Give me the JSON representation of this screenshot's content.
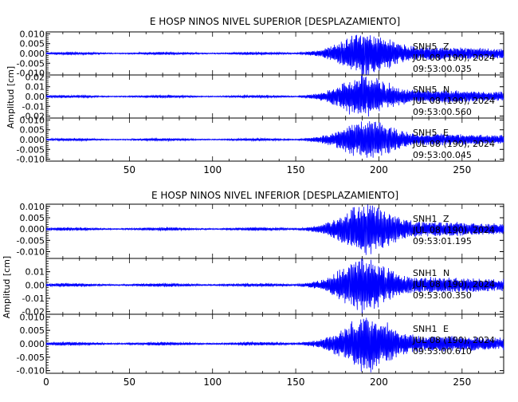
{
  "chart_data": [
    {
      "type": "line",
      "title": "E HOSP NINOS NIVEL SUPERIOR [DESPLAZAMIENTO]",
      "ylabel": "Amplitud [cm]",
      "xlabel": "",
      "xlim": [
        0,
        275
      ],
      "x_ticks": [
        "50",
        "100",
        "150",
        "200",
        "250"
      ],
      "line_color": "#0000ff",
      "panels": [
        {
          "station": "SNH5",
          "component": "Z",
          "date": "JUL 08 (190), 2024",
          "time": "09:53:00.035",
          "ylim": [
            -0.011,
            0.011
          ],
          "y_ticks": [
            "0.010",
            "0.005",
            "0.000",
            "-0.005",
            "-0.010"
          ],
          "onset_s": 150,
          "peak_s": 193,
          "peak_amp": 0.011
        },
        {
          "station": "SNH5",
          "component": "N",
          "date": "JUL 08 (190), 2024",
          "time": "09:53:00.560",
          "ylim": [
            -0.022,
            0.022
          ],
          "y_ticks": [
            "0.02",
            "0.01",
            "0.00",
            "-0.01",
            "-0.02"
          ],
          "onset_s": 150,
          "peak_s": 191,
          "peak_amp": 0.021
        },
        {
          "station": "SNH5",
          "component": "E",
          "date": "JUL 08 (190), 2024",
          "time": "09:53:00.045",
          "ylim": [
            -0.011,
            0.011
          ],
          "y_ticks": [
            "0.010",
            "0.005",
            "0.000",
            "-0.005",
            "-0.010"
          ],
          "onset_s": 150,
          "peak_s": 193,
          "peak_amp": 0.01
        }
      ]
    },
    {
      "type": "line",
      "title": "E HOSP NINOS NIVEL INFERIOR [DESPLAZAMIENTO]",
      "ylabel": "Amplitud [cm]",
      "xlabel": "",
      "xlim": [
        0,
        275
      ],
      "x_ticks": [
        "0",
        "50",
        "100",
        "150",
        "200",
        "250"
      ],
      "line_color": "#0000ff",
      "panels": [
        {
          "station": "SNH1",
          "component": "Z",
          "date": "JUL 08 (190), 2024",
          "time": "09:53:01.195",
          "ylim": [
            -0.013,
            0.011
          ],
          "y_ticks": [
            "0.010",
            "0.005",
            "0.000",
            "-0.005",
            "-0.010"
          ],
          "onset_s": 150,
          "peak_s": 193,
          "peak_amp": 0.011
        },
        {
          "station": "SNH1",
          "component": "N",
          "date": "JUL 08 (190), 2024",
          "time": "09:53:00.350",
          "ylim": [
            -0.022,
            0.02
          ],
          "y_ticks": [
            "0.01",
            "0.00",
            "-0.01",
            "-0.02"
          ],
          "onset_s": 150,
          "peak_s": 191,
          "peak_amp": 0.02
        },
        {
          "station": "SNH1",
          "component": "E",
          "date": "JUL 08 (190), 2024",
          "time": "09:53:00.610",
          "ylim": [
            -0.011,
            0.011
          ],
          "y_ticks": [
            "0.010",
            "0.005",
            "0.000",
            "-0.005",
            "-0.010"
          ],
          "onset_s": 150,
          "peak_s": 193,
          "peak_amp": 0.01
        }
      ]
    }
  ]
}
